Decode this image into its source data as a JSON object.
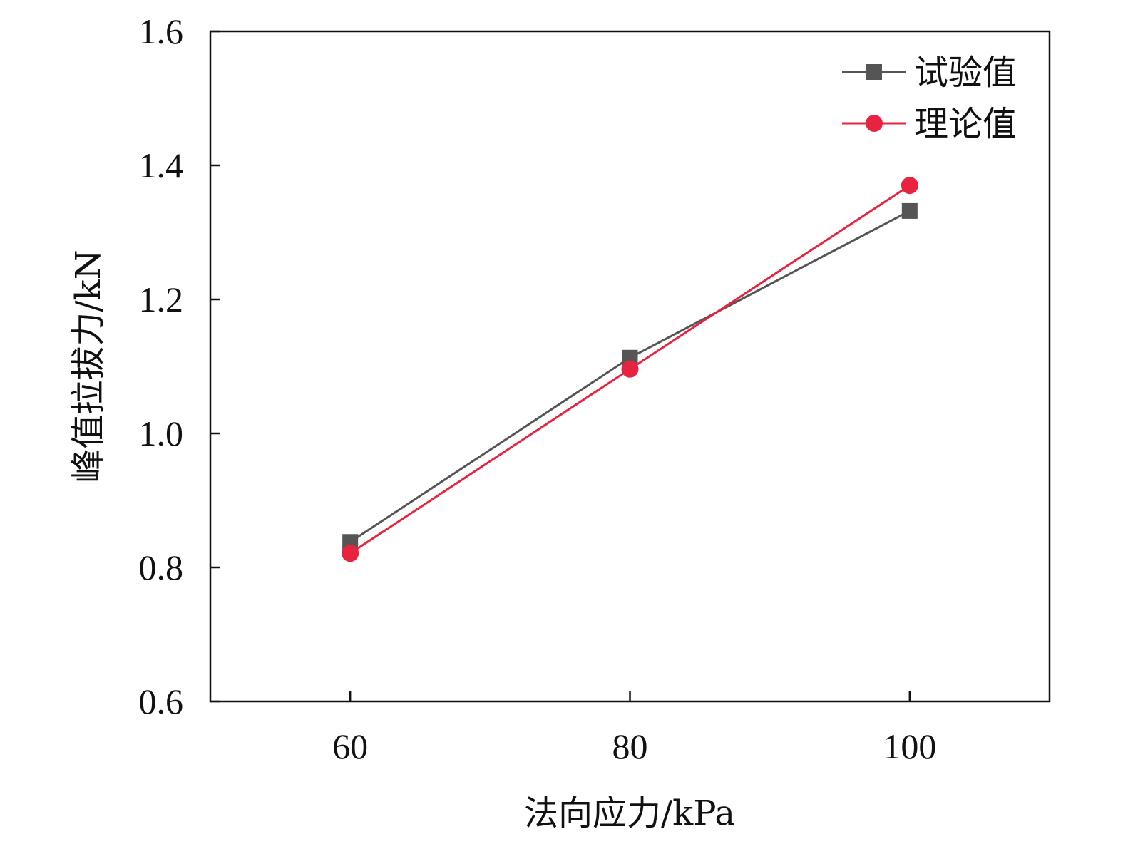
{
  "chart_data": {
    "type": "line",
    "title": "",
    "xlabel": "法向应力/kPa",
    "ylabel": "峰值拉拔力/kN",
    "x": [
      60,
      80,
      100
    ],
    "xlim": [
      50,
      110
    ],
    "ylim": [
      0.6,
      1.6
    ],
    "x_ticks": [
      "60",
      "80",
      "100"
    ],
    "x_tick_values": [
      60,
      80,
      100
    ],
    "y_ticks": [
      "0.6",
      "0.8",
      "1.0",
      "1.2",
      "1.4",
      "1.6"
    ],
    "y_tick_values": [
      0.6,
      0.8,
      1.0,
      1.2,
      1.4,
      1.6
    ],
    "grid": false,
    "legend_position": "top-right",
    "series": [
      {
        "name": "试验值",
        "values": [
          0.838,
          1.113,
          1.332
        ],
        "color": "#555555",
        "marker": "square"
      },
      {
        "name": "理论值",
        "values": [
          0.821,
          1.096,
          1.37
        ],
        "color": "#e8233f",
        "marker": "circle"
      }
    ]
  }
}
